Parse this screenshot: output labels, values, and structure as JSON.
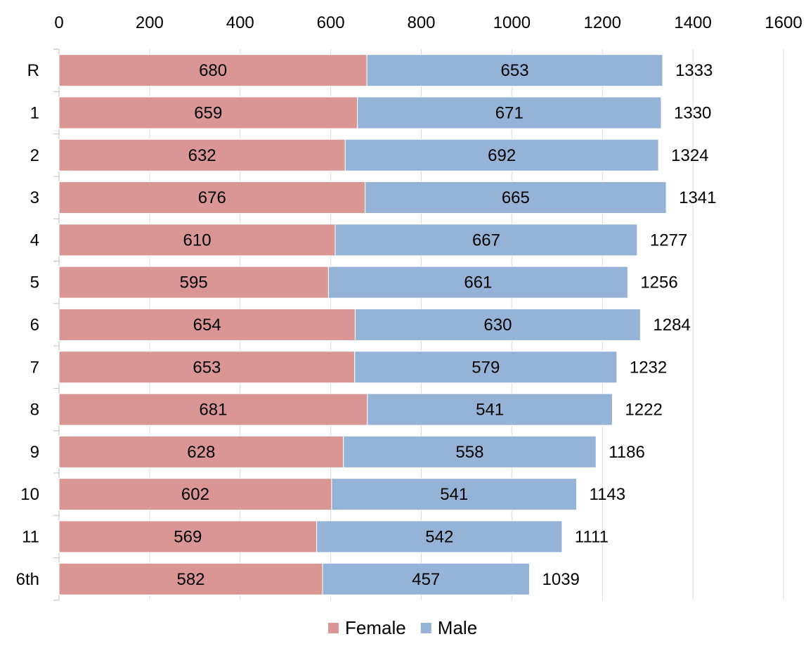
{
  "chart_data": {
    "type": "bar",
    "orientation": "horizontal",
    "stacked": true,
    "title": "",
    "xlabel": "",
    "ylabel": "",
    "xlim": [
      0,
      1600
    ],
    "x_ticks": [
      "0",
      "200",
      "400",
      "600",
      "800",
      "1000",
      "1200",
      "1400",
      "1600"
    ],
    "x_axis_position": "top",
    "grid": "vertical",
    "legend_position": "bottom",
    "categories": [
      "R",
      "1",
      "2",
      "3",
      "4",
      "5",
      "6",
      "7",
      "8",
      "9",
      "10",
      "11",
      "6th"
    ],
    "series": [
      {
        "name": "Female",
        "color": "#d99694",
        "values": [
          680,
          659,
          632,
          676,
          610,
          595,
          654,
          653,
          681,
          628,
          602,
          569,
          582
        ]
      },
      {
        "name": "Male",
        "color": "#95b3d7",
        "values": [
          653,
          671,
          692,
          665,
          667,
          661,
          630,
          579,
          541,
          558,
          541,
          542,
          457
        ]
      }
    ],
    "totals": [
      1333,
      1330,
      1324,
      1341,
      1277,
      1256,
      1284,
      1232,
      1222,
      1186,
      1143,
      1111,
      1039
    ]
  }
}
